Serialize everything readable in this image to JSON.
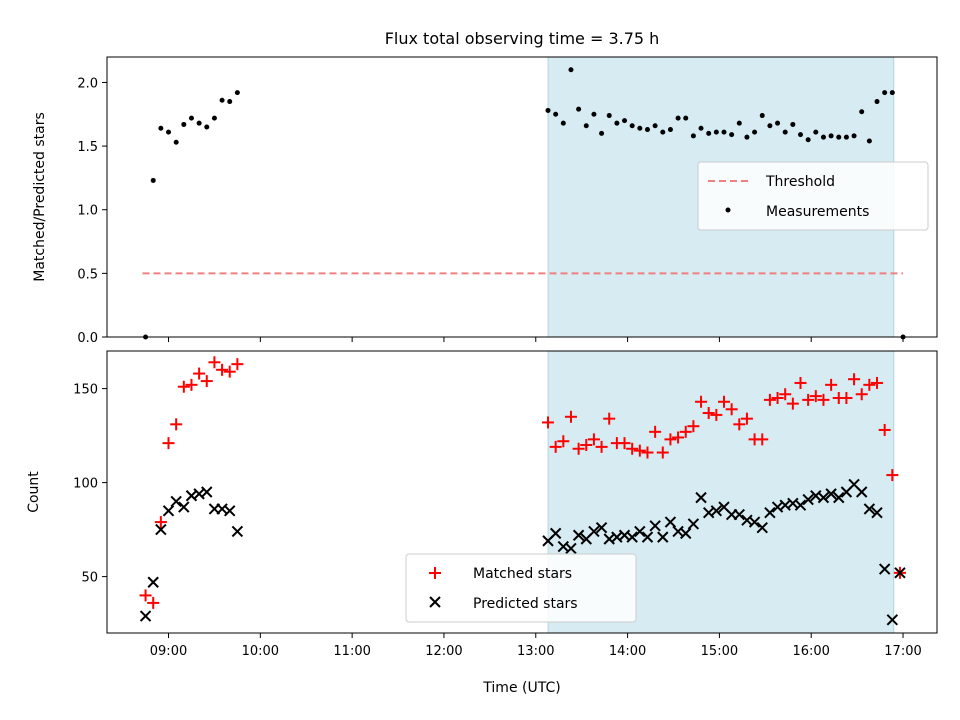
{
  "chart_data": {
    "type": "scatter",
    "title": "Flux total observing time = 3.75 h",
    "xlabel": "Time (UTC)",
    "x_tick_labels": [
      "09:00",
      "10:00",
      "11:00",
      "12:00",
      "13:00",
      "14:00",
      "15:00",
      "16:00",
      "17:00"
    ],
    "x_range_hours": [
      8.33,
      17.37
    ],
    "observing_span": [
      "13:08",
      "16:54"
    ],
    "shade_color": "#add8e6",
    "panels": [
      {
        "id": "ratio",
        "ylabel": "Matched/Predicted stars",
        "ylim": [
          0,
          2.2
        ],
        "y_ticks": [
          0.0,
          0.5,
          1.0,
          1.5,
          2.0
        ],
        "y_tick_labels": [
          "0.0",
          "0.5",
          "1.0",
          "1.5",
          "2.0"
        ],
        "legend": {
          "placement": "center-right",
          "entries": [
            "Threshold",
            "Measurements"
          ]
        },
        "series": [
          {
            "name": "Threshold",
            "kind": "dashed-line",
            "color": "#f08080",
            "x": [
              "08:43",
              "17:00"
            ],
            "y": [
              0.5,
              0.5
            ]
          },
          {
            "name": "Measurements",
            "kind": "dot",
            "color": "#000000",
            "x": [
              "08:45",
              "08:50",
              "08:55",
              "09:00",
              "09:05",
              "09:10",
              "09:15",
              "09:20",
              "09:25",
              "09:30",
              "09:35",
              "09:40",
              "09:45",
              "13:08",
              "13:13",
              "13:18",
              "13:23",
              "13:28",
              "13:33",
              "13:38",
              "13:43",
              "13:48",
              "13:53",
              "13:58",
              "14:03",
              "14:08",
              "14:13",
              "14:18",
              "14:23",
              "14:28",
              "14:33",
              "14:38",
              "14:43",
              "14:48",
              "14:53",
              "14:58",
              "15:03",
              "15:08",
              "15:13",
              "15:18",
              "15:23",
              "15:28",
              "15:33",
              "15:38",
              "15:43",
              "15:48",
              "15:53",
              "15:58",
              "16:03",
              "16:08",
              "16:13",
              "16:18",
              "16:23",
              "16:28",
              "16:33",
              "16:38",
              "16:43",
              "16:48",
              "16:53",
              "17:00"
            ],
            "y": [
              0.0,
              1.23,
              1.64,
              1.61,
              1.53,
              1.67,
              1.72,
              1.68,
              1.65,
              1.72,
              1.86,
              1.85,
              1.92,
              1.78,
              1.75,
              1.68,
              2.1,
              1.79,
              1.66,
              1.75,
              1.6,
              1.74,
              1.68,
              1.7,
              1.66,
              1.64,
              1.63,
              1.66,
              1.61,
              1.63,
              1.72,
              1.72,
              1.58,
              1.64,
              1.6,
              1.61,
              1.61,
              1.59,
              1.68,
              1.57,
              1.61,
              1.74,
              1.66,
              1.68,
              1.61,
              1.67,
              1.59,
              1.55,
              1.61,
              1.57,
              1.58,
              1.57,
              1.57,
              1.58,
              1.77,
              1.54,
              1.85,
              1.92,
              1.92,
              0.0
            ]
          }
        ]
      },
      {
        "id": "counts",
        "ylabel": "Count",
        "ylim": [
          20,
          170
        ],
        "y_ticks": [
          50,
          100,
          150
        ],
        "y_tick_labels": [
          "50",
          "100",
          "150"
        ],
        "legend": {
          "placement": "lower-center",
          "entries": [
            "Matched stars",
            "Predicted stars"
          ]
        },
        "series": [
          {
            "name": "Matched stars",
            "kind": "plus",
            "color": "#ff0000",
            "x": [
              "08:45",
              "08:50",
              "08:55",
              "09:00",
              "09:05",
              "09:10",
              "09:15",
              "09:20",
              "09:25",
              "09:30",
              "09:35",
              "09:40",
              "09:45",
              "13:08",
              "13:13",
              "13:18",
              "13:23",
              "13:28",
              "13:33",
              "13:38",
              "13:43",
              "13:48",
              "13:53",
              "13:58",
              "14:03",
              "14:08",
              "14:13",
              "14:18",
              "14:23",
              "14:28",
              "14:33",
              "14:38",
              "14:43",
              "14:48",
              "14:53",
              "14:58",
              "15:03",
              "15:08",
              "15:13",
              "15:18",
              "15:23",
              "15:28",
              "15:33",
              "15:38",
              "15:43",
              "15:48",
              "15:53",
              "15:58",
              "16:03",
              "16:08",
              "16:13",
              "16:18",
              "16:23",
              "16:28",
              "16:33",
              "16:38",
              "16:43",
              "16:48",
              "16:53",
              "16:58"
            ],
            "y": [
              40,
              36,
              79,
              121,
              131,
              151,
              152,
              158,
              154,
              164,
              160,
              159,
              163,
              132,
              119,
              122,
              135,
              118,
              120,
              123,
              119,
              134,
              121,
              121,
              118,
              117,
              116,
              127,
              116,
              123,
              124,
              127,
              130,
              143,
              137,
              136,
              143,
              139,
              131,
              134,
              123,
              123,
              144,
              145,
              147,
              142,
              153,
              144,
              146,
              144,
              152,
              145,
              145,
              155,
              147,
              152,
              153,
              128,
              104,
              52
            ]
          },
          {
            "name": "Predicted stars",
            "kind": "cross",
            "color": "#000000",
            "x": [
              "08:45",
              "08:50",
              "08:55",
              "09:00",
              "09:05",
              "09:10",
              "09:15",
              "09:20",
              "09:25",
              "09:30",
              "09:35",
              "09:40",
              "09:45",
              "13:08",
              "13:13",
              "13:18",
              "13:23",
              "13:28",
              "13:33",
              "13:38",
              "13:43",
              "13:48",
              "13:53",
              "13:58",
              "14:03",
              "14:08",
              "14:13",
              "14:18",
              "14:23",
              "14:28",
              "14:33",
              "14:38",
              "14:43",
              "14:48",
              "14:53",
              "14:58",
              "15:03",
              "15:08",
              "15:13",
              "15:18",
              "15:23",
              "15:28",
              "15:33",
              "15:38",
              "15:43",
              "15:48",
              "15:53",
              "15:58",
              "16:03",
              "16:08",
              "16:13",
              "16:18",
              "16:23",
              "16:28",
              "16:33",
              "16:38",
              "16:43",
              "16:48",
              "16:53",
              "16:58"
            ],
            "y": [
              29,
              47,
              75,
              85,
              90,
              87,
              93,
              94,
              95,
              86,
              86,
              85,
              74,
              69,
              73,
              66,
              65,
              72,
              70,
              74,
              76,
              70,
              71,
              72,
              71,
              74,
              71,
              77,
              71,
              79,
              74,
              73,
              78,
              92,
              84,
              85,
              87,
              83,
              83,
              80,
              79,
              76,
              84,
              87,
              88,
              89,
              88,
              91,
              93,
              92,
              94,
              92,
              95,
              99,
              95,
              86,
              84,
              54,
              27,
              52
            ]
          }
        ]
      }
    ]
  }
}
